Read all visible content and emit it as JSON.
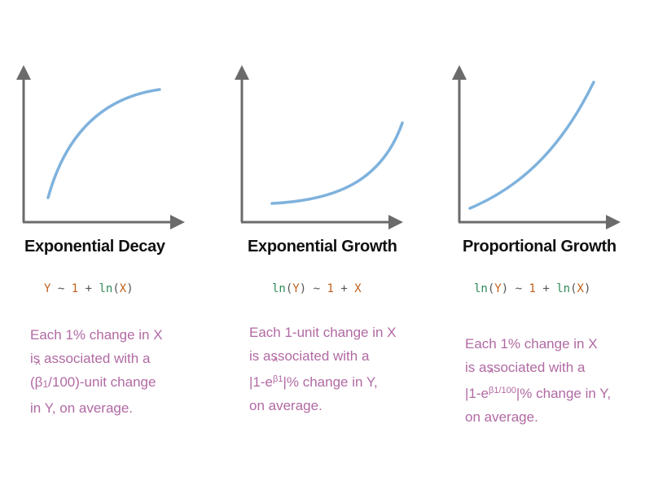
{
  "colors": {
    "axis": "#6b6b6b",
    "curve": "#7fb2dd",
    "title": "#111111",
    "description": "#b16aa3",
    "formula_orange": "#c0601a",
    "formula_green": "#2e8b57"
  },
  "panels": [
    {
      "title": "Exponential Decay",
      "formula": {
        "y": "Y",
        "tilde": "~",
        "one": "1",
        "plus": "+",
        "fn": "ln",
        "open": "(",
        "x": "X",
        "close": ")"
      },
      "description": {
        "line1": "Each 1% change in X",
        "line2": "is associated with a",
        "line3_open": "(",
        "beta": "β",
        "beta_sub": "1",
        "line3_rest": "/100)-unit change",
        "line4": "in Y, on average."
      }
    },
    {
      "title": "Exponential Growth",
      "formula": {
        "fn": "ln",
        "open": "(",
        "y": "Y",
        "close": ")",
        "tilde": "~",
        "one": "1",
        "plus": "+",
        "x": "X"
      },
      "description": {
        "line1": "Each 1-unit change in X",
        "line2": "is associated with a",
        "line3_pre": "|1-e",
        "exp": "β1",
        "line3_post": "|% change in Y,",
        "line4": "on average."
      }
    },
    {
      "title": "Proportional Growth",
      "formula": {
        "fn1": "ln",
        "open1": "(",
        "y": "Y",
        "close1": ")",
        "tilde": "~",
        "one": "1",
        "plus": "+",
        "fn2": "ln",
        "open2": "(",
        "x": "X",
        "close2": ")"
      },
      "description": {
        "line1": "Each 1% change in X",
        "line2": "is associated with a",
        "line3_pre": "|1-e",
        "exp": "β1/100",
        "line3_post": "|% change in Y,",
        "line4": "on average."
      }
    }
  ]
}
